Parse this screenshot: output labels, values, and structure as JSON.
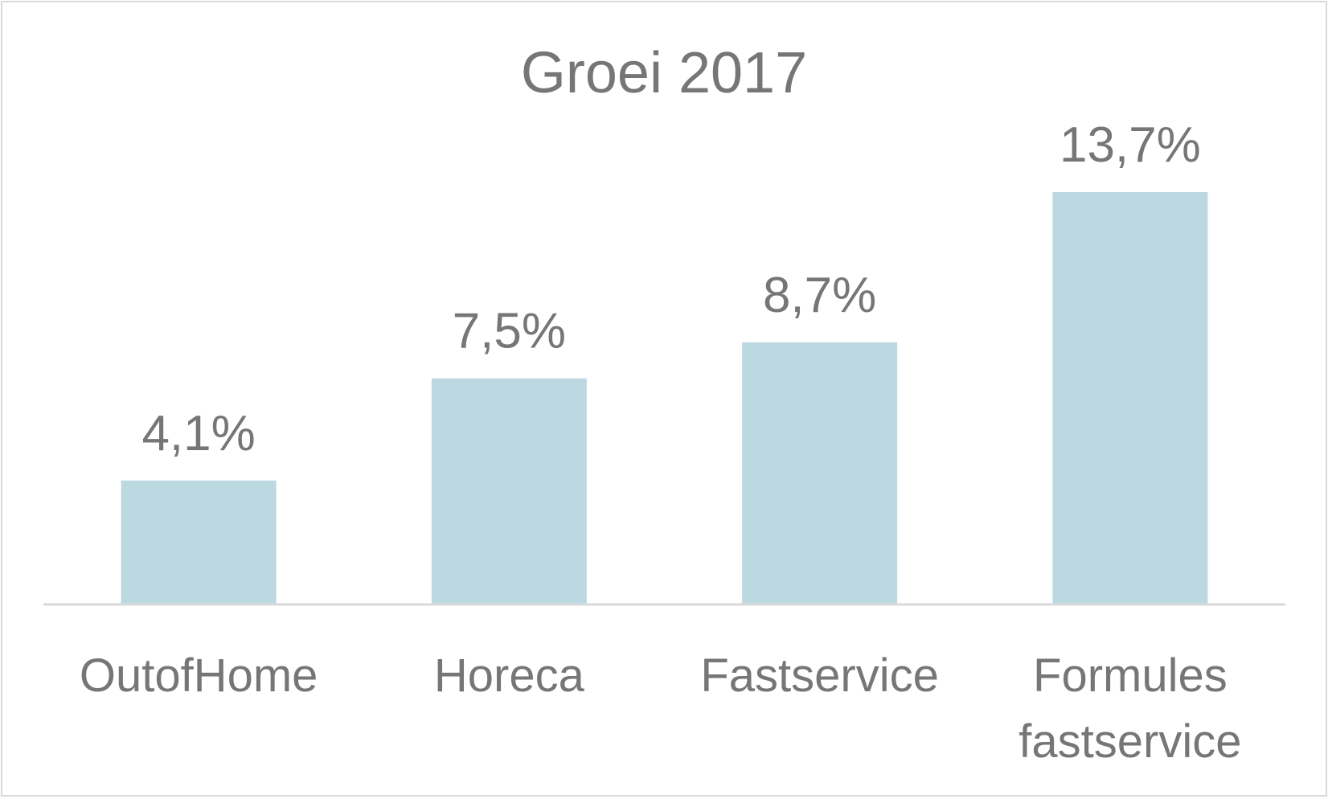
{
  "chart_data": {
    "type": "bar",
    "title": "Groei 2017",
    "categories": [
      [
        "OutofHome"
      ],
      [
        "Horeca"
      ],
      [
        "Fastservice"
      ],
      [
        "Formules",
        "fastservice"
      ]
    ],
    "values": [
      4.1,
      7.5,
      8.7,
      13.7
    ],
    "data_labels": [
      "4,1%",
      "7,5%",
      "8,7%",
      "13,7%"
    ],
    "unit": "%",
    "xlabel": "",
    "ylabel": "",
    "ylim": [
      0,
      13.7
    ],
    "grid": false,
    "legend": "none",
    "bar_color": "#bcd9e2",
    "text_color": "#767676",
    "axis_color": "#d9d9d9"
  }
}
